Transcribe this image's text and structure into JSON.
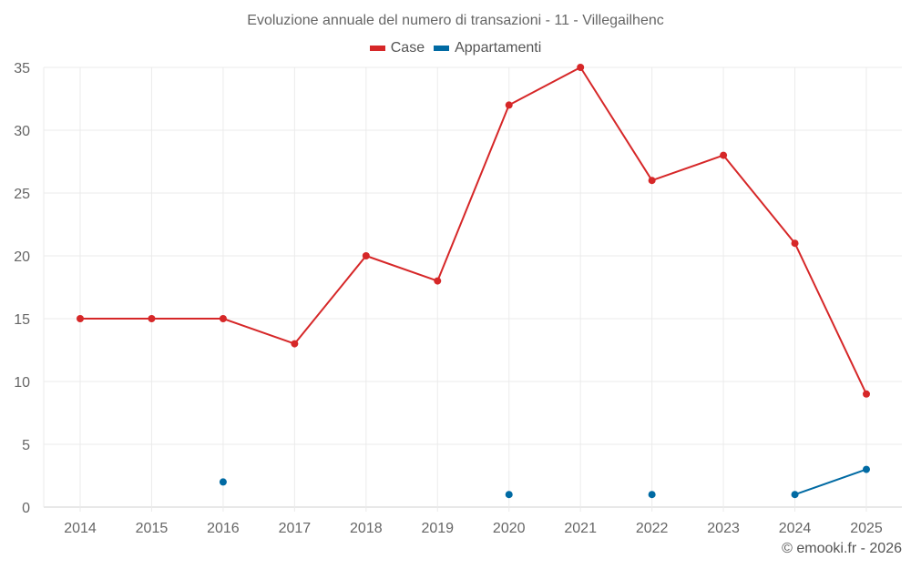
{
  "chart_data": {
    "type": "line",
    "title": "Evoluzione annuale del numero di transazioni - 11 - Villegailhenc",
    "categories": [
      "2014",
      "2015",
      "2016",
      "2017",
      "2018",
      "2019",
      "2020",
      "2021",
      "2022",
      "2023",
      "2024",
      "2025"
    ],
    "series": [
      {
        "name": "Case",
        "color": "#d62728",
        "values": [
          15,
          15,
          15,
          13,
          20,
          18,
          32,
          35,
          26,
          28,
          21,
          9
        ]
      },
      {
        "name": "Appartamenti",
        "color": "#006aa3",
        "values": [
          null,
          null,
          2,
          null,
          null,
          null,
          1,
          null,
          1,
          null,
          1,
          3
        ]
      }
    ],
    "xlabel": "",
    "ylabel": "",
    "ylim": [
      0,
      35
    ],
    "yticks": [
      0,
      5,
      10,
      15,
      20,
      25,
      30,
      35
    ],
    "grid": true,
    "legend_position": "top"
  },
  "footer": {
    "credit": "© emooki.fr - 2026"
  }
}
